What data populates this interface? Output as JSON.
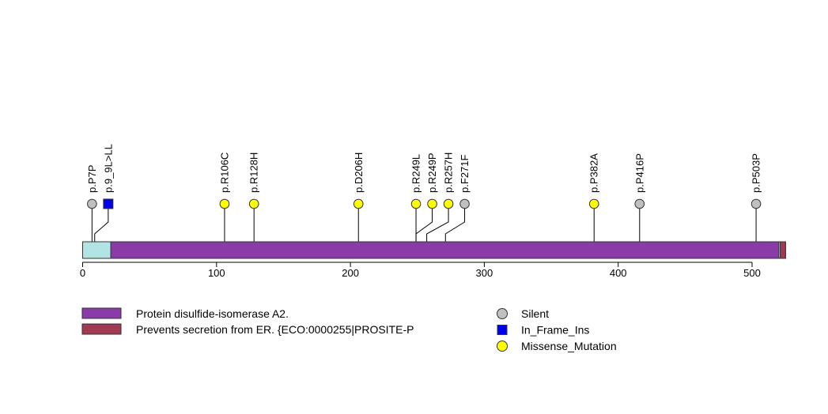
{
  "chart_data": {
    "type": "lollipop",
    "protein_length": 525,
    "axis": {
      "ticks": [
        0,
        100,
        200,
        300,
        400,
        500
      ],
      "tick_labels": [
        "0",
        "100",
        "200",
        "300",
        "400",
        "500"
      ]
    },
    "domains": [
      {
        "name": "Protein disulfide-isomerase A2.",
        "start": 21,
        "end": 520,
        "color": "#8a3ba8"
      },
      {
        "name": "Prevents secretion from ER. {ECO:0000255|PROSITE-P",
        "start": 521,
        "end": 525,
        "color": "#a33a55"
      }
    ],
    "signal_region": {
      "start": 1,
      "end": 21,
      "color": "#b2e4e6"
    },
    "mutations": [
      {
        "label": "p.P7P",
        "position": 7,
        "type": "Silent"
      },
      {
        "label": "p.9_9L>LL",
        "position": 9,
        "type": "In_Frame_Ins"
      },
      {
        "label": "p.R106C",
        "position": 106,
        "type": "Missense_Mutation"
      },
      {
        "label": "p.R128H",
        "position": 128,
        "type": "Missense_Mutation"
      },
      {
        "label": "p.D206H",
        "position": 206,
        "type": "Missense_Mutation"
      },
      {
        "label": "p.R249L",
        "position": 249,
        "type": "Missense_Mutation"
      },
      {
        "label": "p.R249P",
        "position": 249,
        "type": "Missense_Mutation"
      },
      {
        "label": "p.R257H",
        "position": 257,
        "type": "Missense_Mutation"
      },
      {
        "label": "p.F271F",
        "position": 271,
        "type": "Silent"
      },
      {
        "label": "p.P382A",
        "position": 382,
        "type": "Missense_Mutation"
      },
      {
        "label": "p.P416P",
        "position": 416,
        "type": "Silent"
      },
      {
        "label": "p.P503P",
        "position": 503,
        "type": "Silent"
      }
    ],
    "mutation_types": [
      {
        "name": "Silent",
        "color": "#c0c0c0",
        "shape": "circle"
      },
      {
        "name": "In_Frame_Ins",
        "color": "#0000ee",
        "shape": "square"
      },
      {
        "name": "Missense_Mutation",
        "color": "#ffff00",
        "shape": "circle"
      }
    ]
  }
}
